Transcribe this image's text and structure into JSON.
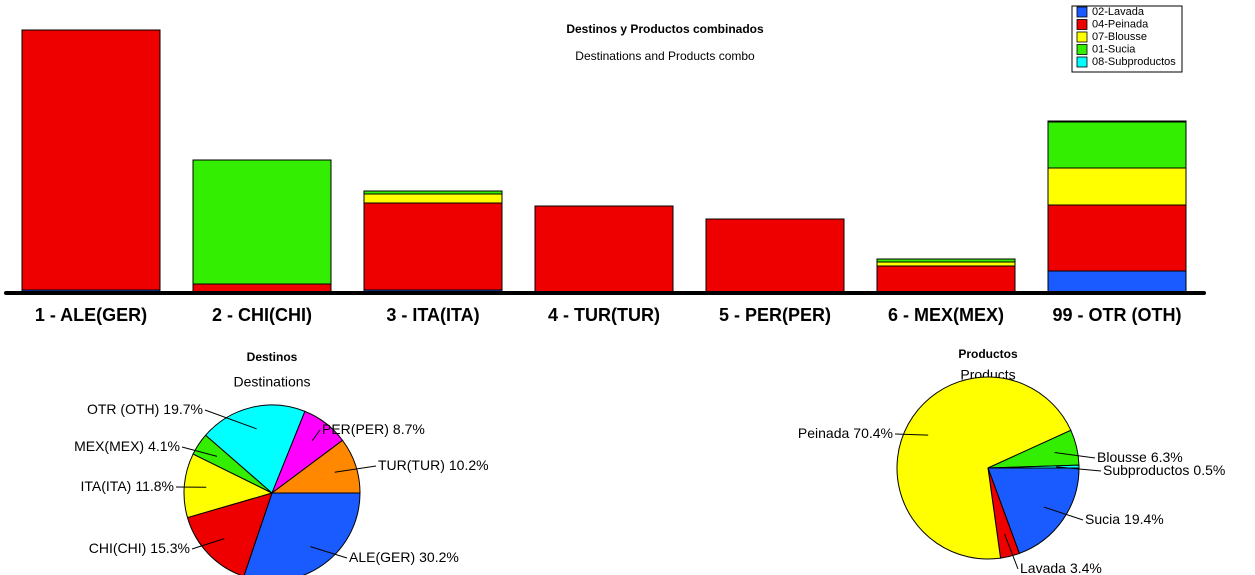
{
  "chart_data": [
    {
      "type": "bar",
      "title": "Destinos y Productos combinados",
      "subtitle": "Destinations and Products combo",
      "categories": [
        "1 - ALE(GER)",
        "2 - CHI(CHI)",
        "3 - ITA(ITA)",
        "4 - TUR(TUR)",
        "5 - PER(PER)",
        "6 - MEX(MEX)",
        "99 - OTR (OTH)"
      ],
      "series": [
        {
          "name": "02-Lavada",
          "color": "#1a5bff",
          "values": [
            3,
            0,
            3,
            0,
            0,
            0,
            22
          ]
        },
        {
          "name": "04-Peinada",
          "color": "#ee0000",
          "values": [
            260,
            9,
            87,
            87,
            74,
            27,
            66
          ]
        },
        {
          "name": "07-Blousse",
          "color": "#ffff00",
          "values": [
            0,
            0,
            9,
            0,
            0,
            4,
            37
          ]
        },
        {
          "name": "01-Sucia",
          "color": "#33ee00",
          "values": [
            0,
            124,
            3,
            0,
            0,
            3,
            46
          ]
        },
        {
          "name": "08-Subproductos",
          "color": "#00ffff",
          "values": [
            0,
            0,
            0,
            0,
            0,
            0,
            1
          ]
        }
      ],
      "legend": "top-right"
    },
    {
      "type": "pie",
      "title": "Destinos",
      "subtitle": "Destinations",
      "categories": [
        "ALE(GER)",
        "CHI(CHI)",
        "ITA(ITA)",
        "MEX(MEX)",
        "OTR (OTH)",
        "PER(PER)",
        "TUR(TUR)"
      ],
      "values": [
        30.2,
        15.3,
        11.8,
        4.1,
        19.7,
        8.7,
        10.2
      ],
      "value_labels": [
        "30.2%",
        "15.3%",
        "11.8%",
        "4.1%",
        "19.7%",
        "8.7%",
        "10.2%"
      ],
      "colors": [
        "#1a5bff",
        "#ee0000",
        "#ffff00",
        "#33ee00",
        "#00ffff",
        "#ff00ff",
        "#ff8800"
      ]
    },
    {
      "type": "pie",
      "title": "Productos",
      "subtitle": "Products",
      "categories": [
        "Sucia",
        "Lavada",
        "Peinada",
        "Blousse",
        "Subproductos"
      ],
      "values": [
        19.4,
        3.4,
        70.4,
        6.3,
        0.5
      ],
      "value_labels": [
        "19.4%",
        "3.4%",
        "70.4%",
        "6.3%",
        "0.5%"
      ],
      "colors": [
        "#1a5bff",
        "#ee0000",
        "#ffff00",
        "#33ee00",
        "#00ffff"
      ]
    }
  ]
}
